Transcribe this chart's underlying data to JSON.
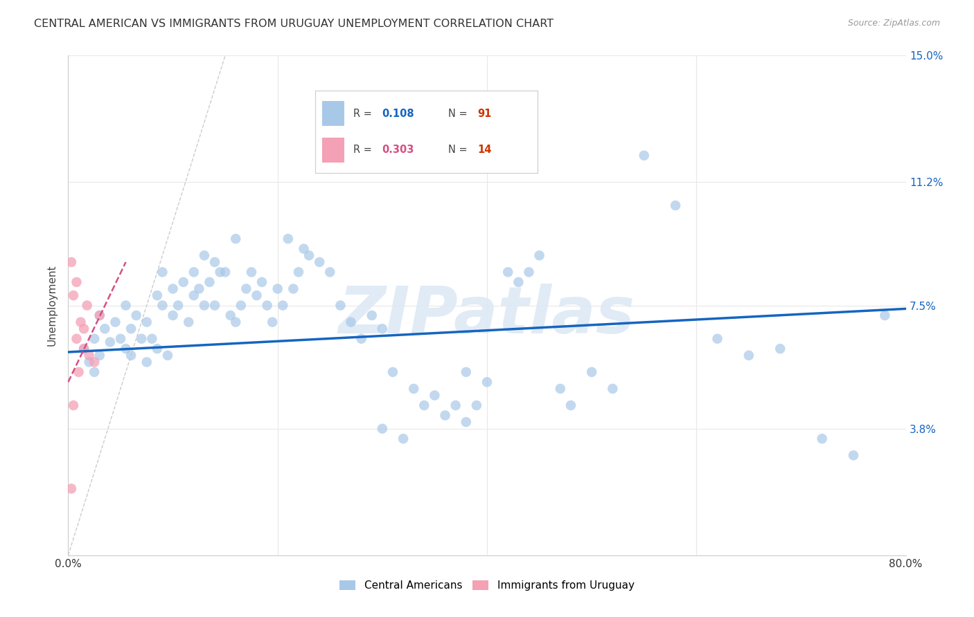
{
  "title": "CENTRAL AMERICAN VS IMMIGRANTS FROM URUGUAY UNEMPLOYMENT CORRELATION CHART",
  "source": "Source: ZipAtlas.com",
  "ylabel": "Unemployment",
  "xlim": [
    0.0,
    80.0
  ],
  "ylim": [
    0.0,
    15.0
  ],
  "blue_color": "#a8c8e8",
  "blue_line_color": "#1565c0",
  "pink_color": "#f4a0b5",
  "pink_line_color": "#d45080",
  "watermark_text": "ZIPatlas",
  "blue_reg_x0": 0.0,
  "blue_reg_x1": 80.0,
  "blue_reg_y0": 6.1,
  "blue_reg_y1": 7.4,
  "pink_reg_x0": 0.0,
  "pink_reg_x1": 5.5,
  "pink_reg_y0": 5.2,
  "pink_reg_y1": 8.8,
  "ref_line_x0": 0.0,
  "ref_line_x1": 15.0,
  "ref_line_y0": 0.0,
  "ref_line_y1": 15.0,
  "blue_x": [
    1.5,
    2.0,
    2.5,
    2.5,
    3.0,
    3.0,
    3.5,
    4.0,
    4.5,
    5.0,
    5.5,
    5.5,
    6.0,
    6.0,
    6.5,
    7.0,
    7.5,
    7.5,
    8.0,
    8.5,
    8.5,
    9.0,
    9.0,
    9.5,
    10.0,
    10.0,
    10.5,
    11.0,
    11.5,
    12.0,
    12.0,
    12.5,
    13.0,
    13.0,
    13.5,
    14.0,
    14.0,
    14.5,
    15.0,
    15.5,
    16.0,
    16.0,
    16.5,
    17.0,
    17.5,
    18.0,
    18.5,
    19.0,
    19.5,
    20.0,
    20.5,
    21.0,
    21.5,
    22.0,
    22.5,
    23.0,
    24.0,
    25.0,
    26.0,
    27.0,
    28.0,
    29.0,
    30.0,
    31.0,
    33.0,
    35.0,
    37.0,
    38.0,
    39.0,
    40.0,
    42.0,
    43.0,
    44.0,
    45.0,
    47.0,
    48.0,
    50.0,
    52.0,
    55.0,
    58.0,
    62.0,
    65.0,
    68.0,
    72.0,
    75.0,
    78.0,
    30.0,
    32.0,
    34.0,
    36.0,
    38.0
  ],
  "blue_y": [
    6.2,
    5.8,
    6.5,
    5.5,
    6.0,
    7.2,
    6.8,
    6.4,
    7.0,
    6.5,
    6.2,
    7.5,
    6.0,
    6.8,
    7.2,
    6.5,
    7.0,
    5.8,
    6.5,
    7.8,
    6.2,
    7.5,
    8.5,
    6.0,
    7.2,
    8.0,
    7.5,
    8.2,
    7.0,
    8.5,
    7.8,
    8.0,
    7.5,
    9.0,
    8.2,
    7.5,
    8.8,
    8.5,
    8.5,
    7.2,
    7.0,
    9.5,
    7.5,
    8.0,
    8.5,
    7.8,
    8.2,
    7.5,
    7.0,
    8.0,
    7.5,
    9.5,
    8.0,
    8.5,
    9.2,
    9.0,
    8.8,
    8.5,
    7.5,
    7.0,
    6.5,
    7.2,
    6.8,
    5.5,
    5.0,
    4.8,
    4.5,
    5.5,
    4.5,
    5.2,
    8.5,
    8.2,
    8.5,
    9.0,
    5.0,
    4.5,
    5.5,
    5.0,
    12.0,
    10.5,
    6.5,
    6.0,
    6.2,
    3.5,
    3.0,
    7.2,
    3.8,
    3.5,
    4.5,
    4.2,
    4.0
  ],
  "pink_x": [
    0.3,
    0.5,
    0.8,
    0.8,
    1.0,
    1.2,
    1.5,
    1.5,
    1.8,
    2.0,
    2.5,
    3.0,
    0.5,
    0.3
  ],
  "pink_y": [
    8.8,
    7.8,
    8.2,
    6.5,
    5.5,
    7.0,
    6.8,
    6.2,
    7.5,
    6.0,
    5.8,
    7.2,
    4.5,
    2.0
  ]
}
